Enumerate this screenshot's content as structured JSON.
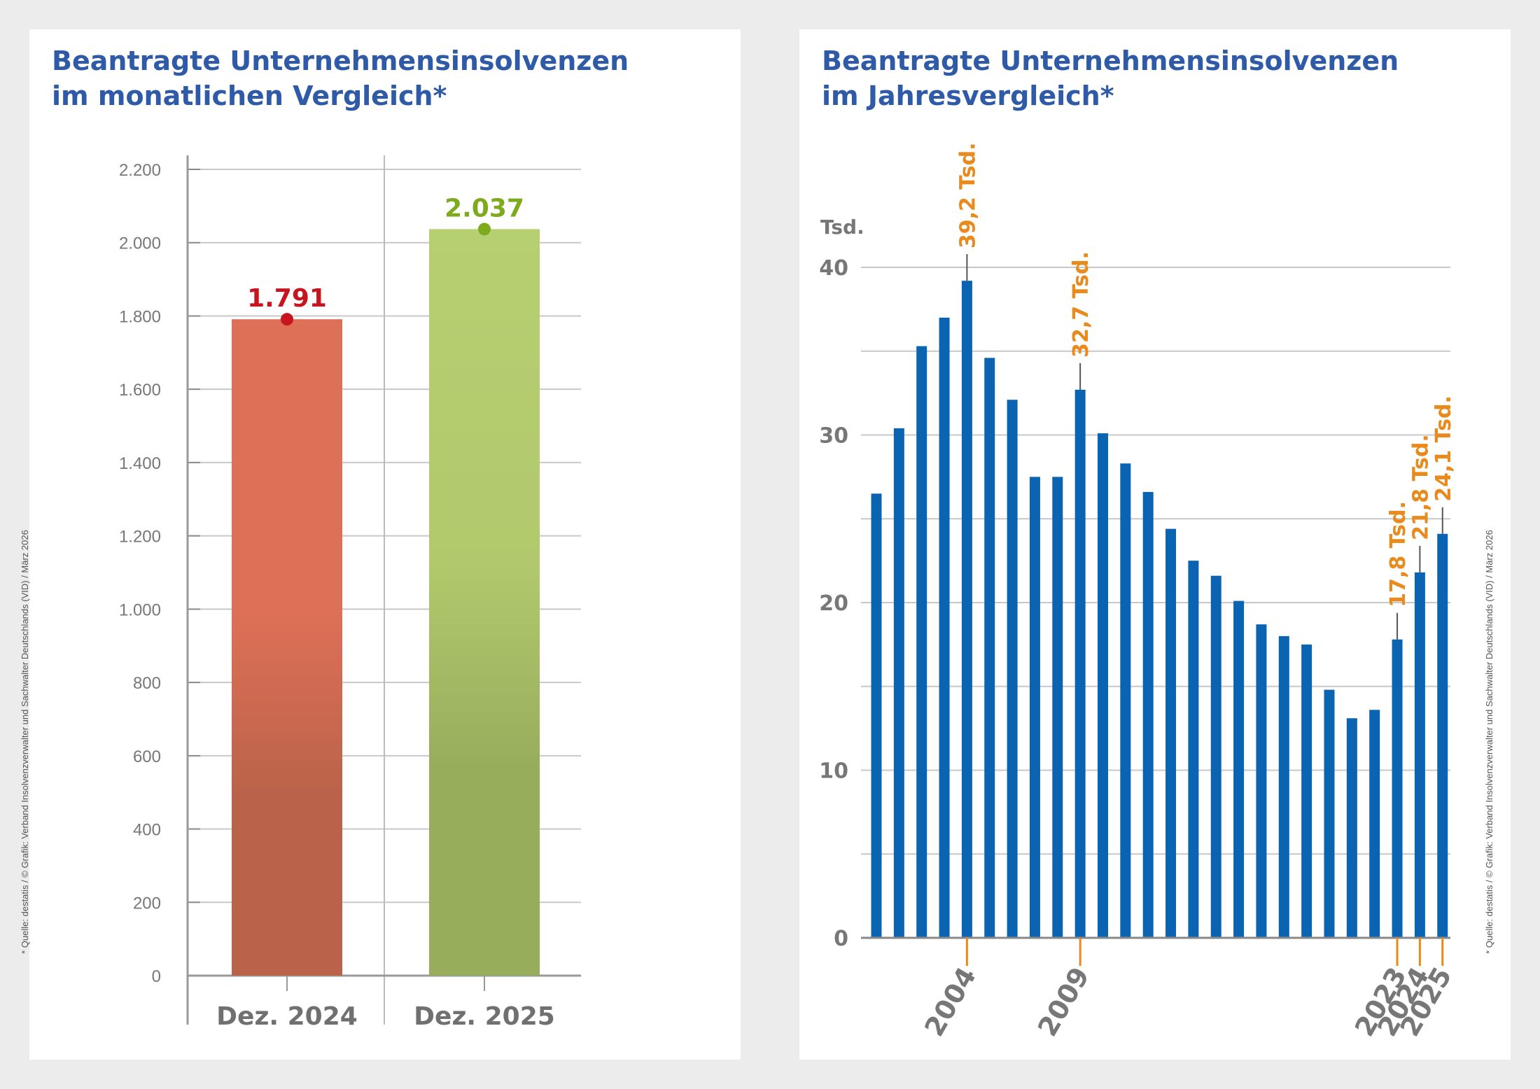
{
  "colors": {
    "title": "#2e5aa8",
    "bar_2024": "#dd7057",
    "bar_2025": "#b6cf71",
    "label_2024": "#c8141e",
    "label_2025": "#7eaa1e",
    "bar_blue": "#0a64b2",
    "annotation": "#e98b1c",
    "axis_text": "#777777"
  },
  "left_panel": {
    "title_line1": "Beantragte Unternehmensinsolvenzen",
    "title_line2": "im monatlichen Vergleich*",
    "source": "* Quelle: destatis / © Grafik: Verband Insolvenzverwalter und Sachwalter Deutschlands (VID) / März 2026"
  },
  "right_panel": {
    "title_line1": "Beantragte Unternehmensinsolvenzen",
    "title_line2": "im Jahresvergleich*",
    "source": "* Quelle: destatis / © Grafik: Verband Insolvenzverwalter und Sachwalter Deutschlands (VID) / März 2026"
  },
  "chart_data": [
    {
      "type": "bar",
      "title": "Beantragte Unternehmensinsolvenzen im monatlichen Vergleich*",
      "categories": [
        "Dez. 2024",
        "Dez. 2025"
      ],
      "values": [
        1791,
        2037
      ],
      "value_labels": [
        "1.791",
        "2.037"
      ],
      "ylim": [
        0,
        2200
      ],
      "yticks": [
        0,
        200,
        400,
        600,
        800,
        1000,
        1200,
        1400,
        1600,
        1800,
        2000,
        2200
      ],
      "ytick_labels": [
        "0",
        "200",
        "400",
        "600",
        "800",
        "1.000",
        "1.200",
        "1.400",
        "1.600",
        "1.800",
        "2.000",
        "2.200"
      ],
      "grid": true
    },
    {
      "type": "bar",
      "title": "Beantragte Unternehmensinsolvenzen im Jahresvergleich*",
      "ylabel": "Tsd.",
      "x": [
        2000,
        2001,
        2002,
        2003,
        2004,
        2005,
        2006,
        2007,
        2008,
        2009,
        2010,
        2011,
        2012,
        2013,
        2014,
        2015,
        2016,
        2017,
        2018,
        2019,
        2020,
        2021,
        2022,
        2023,
        2024,
        2025
      ],
      "values": [
        26.5,
        30.4,
        35.3,
        37.0,
        39.2,
        34.6,
        32.1,
        27.5,
        27.5,
        32.7,
        30.1,
        28.3,
        26.6,
        24.4,
        22.5,
        21.6,
        20.1,
        18.7,
        18.0,
        17.5,
        14.8,
        13.1,
        13.6,
        17.8,
        21.8,
        24.1
      ],
      "ylim": [
        0,
        40
      ],
      "yticks": [
        0,
        10,
        20,
        30,
        40
      ],
      "ytick_labels": [
        "0",
        "10",
        "20",
        "30",
        "40"
      ],
      "xtick_labels": [
        {
          "year": 2004,
          "label": "2004"
        },
        {
          "year": 2009,
          "label": "2009"
        },
        {
          "year": 2023,
          "label": "2023"
        },
        {
          "year": 2024,
          "label": "2024"
        },
        {
          "year": 2025,
          "label": "2025"
        }
      ],
      "annotations": [
        {
          "year": 2004,
          "label": "39,2 Tsd."
        },
        {
          "year": 2009,
          "label": "32,7 Tsd."
        },
        {
          "year": 2023,
          "label": "17,8 Tsd."
        },
        {
          "year": 2024,
          "label": "21,8 Tsd."
        },
        {
          "year": 2025,
          "label": "24,1 Tsd."
        }
      ],
      "grid": true
    }
  ]
}
